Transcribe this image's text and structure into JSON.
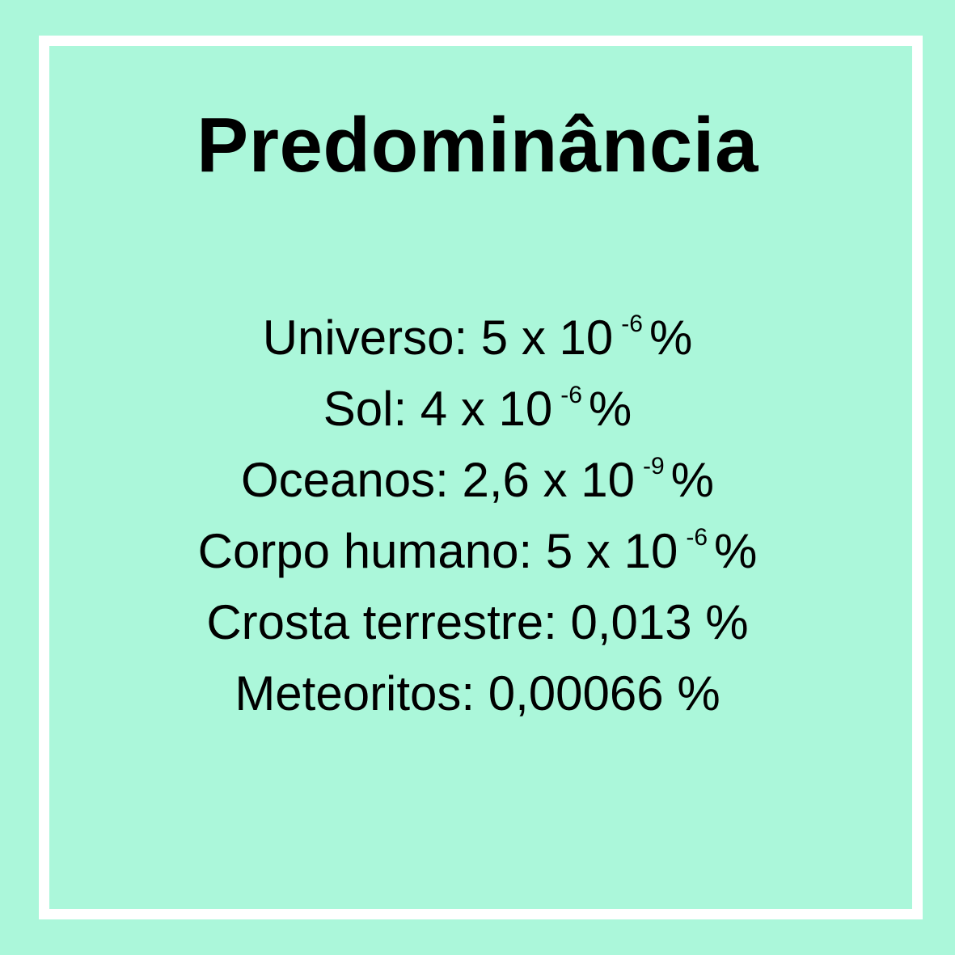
{
  "title": "Predominância",
  "rows": [
    {
      "label": "Universo:",
      "value": "5 x 10",
      "exponent": "-6",
      "unit": "%"
    },
    {
      "label": "Sol:",
      "value": "4 x 10",
      "exponent": "-6",
      "unit": "%"
    },
    {
      "label": "Oceanos:",
      "value": "2,6 x 10",
      "exponent": "-9",
      "unit": "%"
    },
    {
      "label": "Corpo humano:",
      "value": "5 x 10",
      "exponent": "-6",
      "unit": "%"
    },
    {
      "label": "Crosta terrestre:",
      "value": "0,013",
      "unit": "%"
    },
    {
      "label": "Meteoritos:",
      "value": "0,00066",
      "unit": "%"
    }
  ],
  "colors": {
    "background": "#abf7da",
    "frame": "#ffffff",
    "text": "#000000"
  }
}
